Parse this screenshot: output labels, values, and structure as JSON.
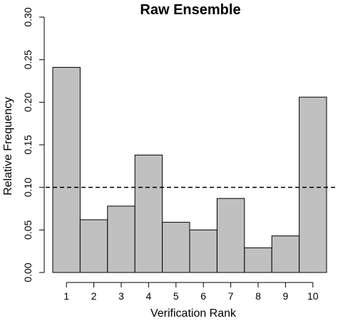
{
  "chart_data": {
    "type": "bar",
    "title": "Raw Ensemble",
    "xlabel": "Verification Rank",
    "ylabel": "Relative Frequency",
    "categories": [
      "1",
      "2",
      "3",
      "4",
      "5",
      "6",
      "7",
      "8",
      "9",
      "10"
    ],
    "values": [
      0.241,
      0.062,
      0.078,
      0.138,
      0.059,
      0.05,
      0.087,
      0.029,
      0.043,
      0.206
    ],
    "ylim": [
      0,
      0.3
    ],
    "yticks": [
      "0.00",
      "0.05",
      "0.10",
      "0.15",
      "0.20",
      "0.25",
      "0.30"
    ],
    "reference_line": {
      "value": 0.1,
      "style": "dashed"
    },
    "bar_color": "#c0c0c0",
    "bar_edge_color": "#000000",
    "grid": false
  }
}
